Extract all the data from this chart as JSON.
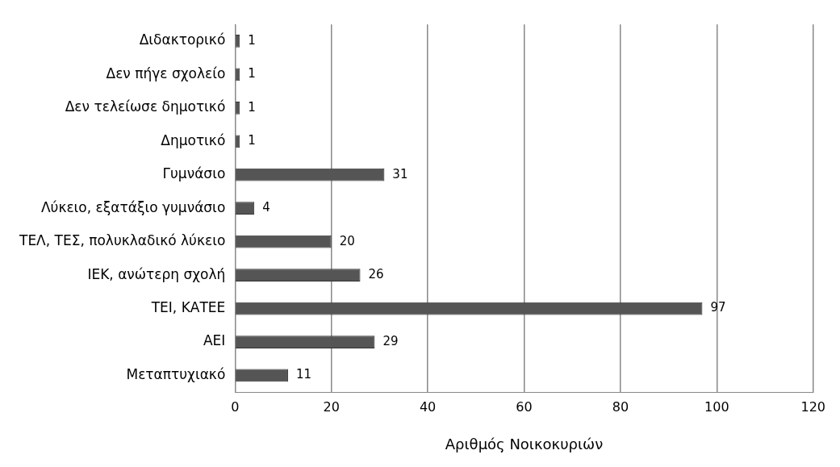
{
  "chart_data": {
    "type": "bar",
    "orientation": "horizontal",
    "xlabel": "Αριθμός Νοικοκυριών",
    "categories": [
      "Διδακτορικό",
      "Δεν πήγε σχολείο",
      "Δεν τελείωσε δημοτικό",
      "Δημοτικό",
      "Γυμνάσιο",
      "Λύκειο, εξατάξιο γυμνάσιο",
      "ΤΕΛ, ΤΕΣ, πολυκλαδικό λύκειο",
      "ΙΕΚ, ανώτερη σχολή",
      "ΤΕΙ, ΚΑΤΕΕ",
      "ΑΕΙ",
      "Μεταπτυχιακό"
    ],
    "values": [
      1,
      1,
      1,
      1,
      31,
      4,
      20,
      26,
      97,
      29,
      11
    ],
    "color": "#555555",
    "xlim": [
      0,
      120
    ],
    "xticks": [
      0,
      20,
      40,
      60,
      80,
      100,
      120
    ],
    "grid": "x",
    "data_labels": true,
    "legend": false
  }
}
